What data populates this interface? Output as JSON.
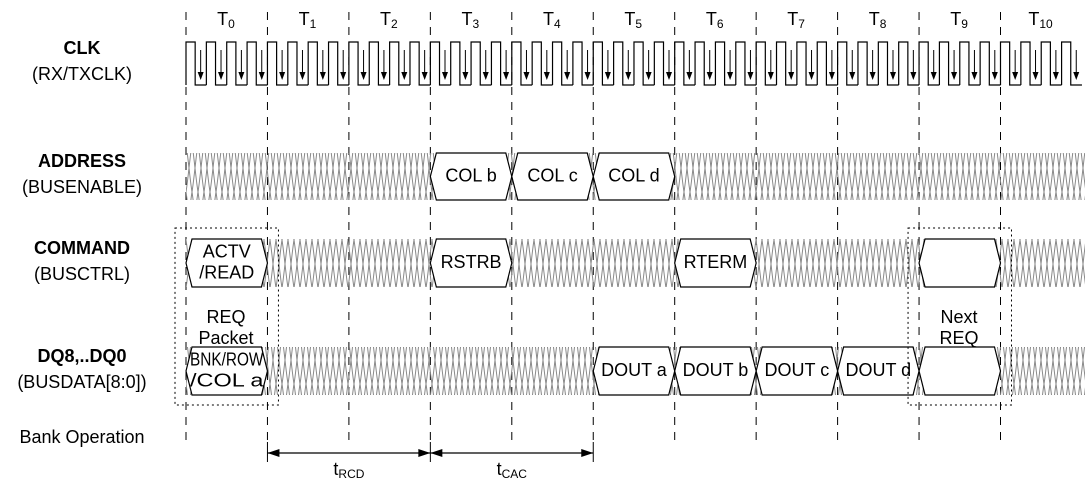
{
  "time_labels": [
    {
      "main": "T",
      "sub": "0"
    },
    {
      "main": "T",
      "sub": "1"
    },
    {
      "main": "T",
      "sub": "2"
    },
    {
      "main": "T",
      "sub": "3"
    },
    {
      "main": "T",
      "sub": "4"
    },
    {
      "main": "T",
      "sub": "5"
    },
    {
      "main": "T",
      "sub": "6"
    },
    {
      "main": "T",
      "sub": "7"
    },
    {
      "main": "T",
      "sub": "8"
    },
    {
      "main": "T",
      "sub": "9"
    },
    {
      "main": "T",
      "sub": "10"
    }
  ],
  "signals": [
    {
      "name": "CLK",
      "note": "(RX/TXCLK)"
    },
    {
      "name": "ADDRESS",
      "note": "(BUSENABLE)"
    },
    {
      "name": "COMMAND",
      "note": "(BUSCTRL)"
    },
    {
      "name": "DQ8,..DQ0",
      "note": "(BUSDATA[8:0])"
    }
  ],
  "address": [
    [
      "COL b"
    ],
    [
      "COL c"
    ],
    [
      "COL d"
    ]
  ],
  "command": [
    [
      "ACTV",
      "/READ"
    ],
    [
      "RSTRB"
    ],
    [
      "RTERM"
    ]
  ],
  "dq": [
    [
      "BNK/ROW",
      "/COL a"
    ],
    [
      "DOUT a"
    ],
    [
      "DOUT b"
    ],
    [
      "DOUT c"
    ],
    [
      "DOUT d"
    ]
  ],
  "packet_notes": [
    [
      "REQ",
      "Packet"
    ],
    [
      "Next",
      "REQ"
    ]
  ],
  "bank_operation": "Bank Operation",
  "intervals": [
    {
      "main": "t",
      "sub": "RCD"
    },
    {
      "main": "t",
      "sub": "CAC"
    }
  ]
}
